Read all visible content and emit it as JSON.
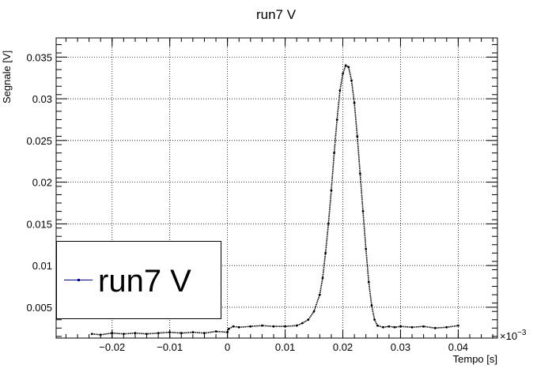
{
  "chart_data": {
    "type": "scatter",
    "title": "run7 V",
    "xlabel": "Tempo [s]",
    "ylabel": "Segnale [V]",
    "x_exponent_label": "×10",
    "x_exponent_power": "−3",
    "xlim": [
      -0.0297,
      0.0468
    ],
    "ylim": [
      0.0013,
      0.0373
    ],
    "x_ticks": [
      -0.02,
      -0.01,
      0,
      0.01,
      0.02,
      0.03,
      0.04
    ],
    "x_tick_labels": [
      "−0.02",
      "−0.01",
      "0",
      "0.01",
      "0.02",
      "0.03",
      "0.04"
    ],
    "y_ticks": [
      0.005,
      0.01,
      0.015,
      0.02,
      0.025,
      0.03,
      0.035
    ],
    "y_tick_labels": [
      "0.005",
      "0.01",
      "0.015",
      "0.02",
      "0.025",
      "0.03",
      "0.035"
    ],
    "grid": true,
    "legend": {
      "position": "lower-left",
      "label": "run7 V"
    },
    "series": [
      {
        "name": "run7 V",
        "color": "#000000",
        "x": [
          -0.0235,
          -0.022,
          -0.02,
          -0.018,
          -0.016,
          -0.014,
          -0.012,
          -0.01,
          -0.008,
          -0.006,
          -0.004,
          -0.002,
          0.0,
          0.0002,
          0.001,
          0.002,
          0.004,
          0.006,
          0.008,
          0.01,
          0.012,
          0.013,
          0.014,
          0.015,
          0.016,
          0.0165,
          0.017,
          0.0175,
          0.018,
          0.0185,
          0.019,
          0.0195,
          0.02,
          0.0205,
          0.021,
          0.0215,
          0.022,
          0.0225,
          0.023,
          0.0235,
          0.024,
          0.0245,
          0.025,
          0.0255,
          0.026,
          0.027,
          0.028,
          0.029,
          0.03,
          0.032,
          0.034,
          0.036,
          0.038,
          0.04
        ],
        "y": [
          0.0018,
          0.0017,
          0.0019,
          0.0018,
          0.0019,
          0.0018,
          0.0019,
          0.002,
          0.0019,
          0.002,
          0.0019,
          0.0021,
          0.002,
          0.0024,
          0.0027,
          0.0026,
          0.0027,
          0.0028,
          0.0027,
          0.0027,
          0.0028,
          0.0031,
          0.0035,
          0.0045,
          0.0065,
          0.0085,
          0.0115,
          0.015,
          0.019,
          0.0235,
          0.0275,
          0.031,
          0.033,
          0.034,
          0.0338,
          0.0322,
          0.0295,
          0.0255,
          0.021,
          0.0165,
          0.012,
          0.008,
          0.0052,
          0.0035,
          0.0028,
          0.0026,
          0.0027,
          0.0026,
          0.0027,
          0.0026,
          0.0027,
          0.0025,
          0.0026,
          0.0028
        ]
      }
    ]
  }
}
